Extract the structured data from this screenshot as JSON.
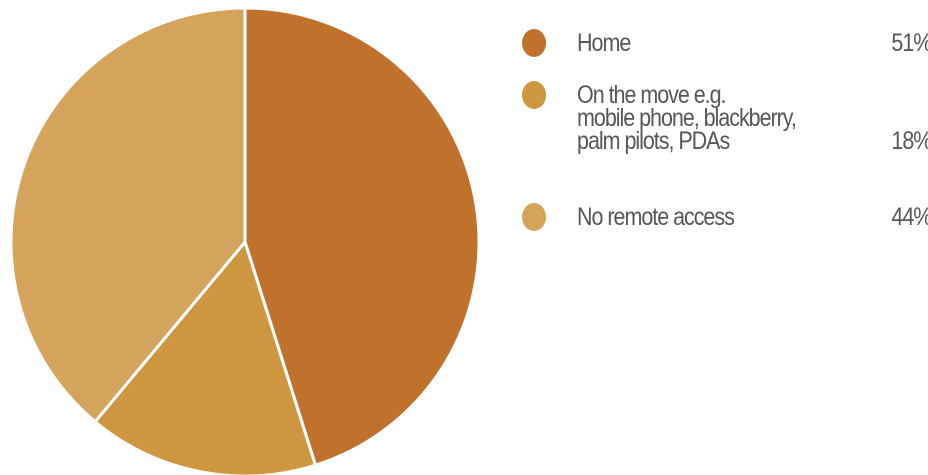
{
  "chart_data": {
    "type": "pie",
    "title": "",
    "slices": [
      {
        "label": "Home",
        "value_label": "51%",
        "value": 51,
        "color": "#c0722d"
      },
      {
        "label": "On the move e.g.\nmobile phone, blackberry,\npalm pilots, PDAs",
        "value_label": "18%",
        "value": 18,
        "color": "#cd963f"
      },
      {
        "label": "No remote access",
        "value_label": "44%",
        "value": 44,
        "color": "#d4a45c"
      }
    ],
    "legend_position": "right",
    "start_angle_deg": 0,
    "direction": "clockwise"
  }
}
